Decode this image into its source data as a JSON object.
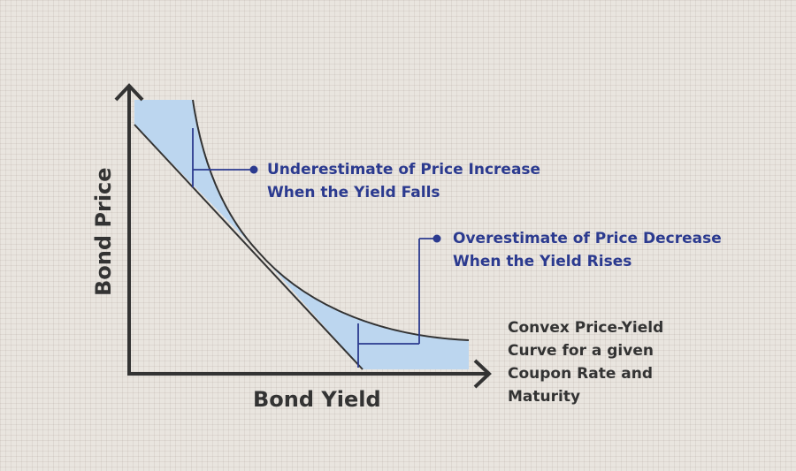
{
  "axes": {
    "x_label": "Bond Yield",
    "y_label": "Bond Price"
  },
  "callouts": {
    "underestimate": {
      "line1": "Underestimate of Price Increase",
      "line2": "When the Yield Falls"
    },
    "overestimate": {
      "line1": "Overestimate of Price Decrease",
      "line2": "When the Yield Rises"
    }
  },
  "curve_note": {
    "line1": "Convex Price-Yield",
    "line2": "Curve for a given",
    "line3": "Coupon Rate and",
    "line4": "Maturity"
  },
  "colors": {
    "shade": "#bcd6ef",
    "callout_text": "#2b3a8f",
    "axis": "#333333"
  }
}
